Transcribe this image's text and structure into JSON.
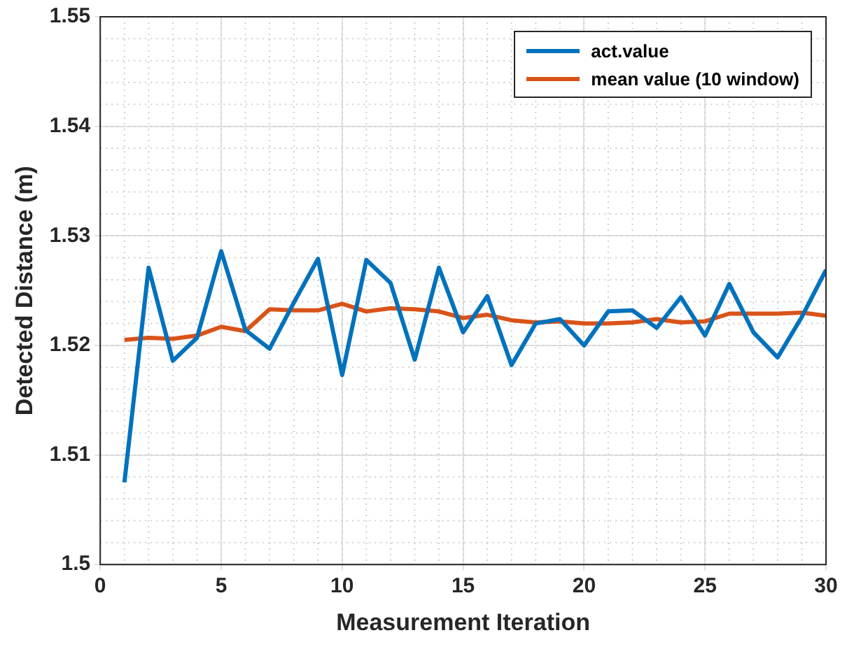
{
  "chart_data": {
    "type": "line",
    "xlabel": "Measurement Iteration",
    "ylabel": "Detected Distance (m)",
    "x": [
      1,
      2,
      3,
      4,
      5,
      6,
      7,
      8,
      9,
      10,
      11,
      12,
      13,
      14,
      15,
      16,
      17,
      18,
      19,
      20,
      21,
      22,
      23,
      24,
      25,
      26,
      27,
      28,
      29,
      30
    ],
    "series": [
      {
        "name": "act.value",
        "color": "#0072bd",
        "values": [
          1.5075,
          1.5271,
          1.5186,
          1.5207,
          1.5286,
          1.5214,
          1.5197,
          1.5239,
          1.5279,
          1.5173,
          1.5278,
          1.5257,
          1.5187,
          1.5271,
          1.5212,
          1.5245,
          1.5182,
          1.522,
          1.5224,
          1.52,
          1.5231,
          1.5232,
          1.5216,
          1.5244,
          1.5209,
          1.5256,
          1.5212,
          1.5189,
          1.5226,
          1.5269
        ]
      },
      {
        "name": "mean value (10 window)",
        "color": "#d95319",
        "values": [
          1.5205,
          1.5207,
          1.5206,
          1.5209,
          1.5217,
          1.5213,
          1.5233,
          1.5232,
          1.5232,
          1.5238,
          1.5231,
          1.5234,
          1.5233,
          1.5231,
          1.5225,
          1.5228,
          1.5223,
          1.5221,
          1.5222,
          1.522,
          1.522,
          1.5221,
          1.5224,
          1.5221,
          1.5222,
          1.5229,
          1.5229,
          1.5229,
          1.523,
          1.5227
        ]
      }
    ],
    "xlim": [
      0,
      30
    ],
    "xticks": [
      0,
      5,
      10,
      15,
      20,
      25,
      30
    ],
    "ylim": [
      1.5,
      1.55
    ],
    "yticks": [
      1.5,
      1.51,
      1.52,
      1.53,
      1.54,
      1.55
    ],
    "grid": true,
    "legend": "top right",
    "marker": "none",
    "line_style": "solid"
  }
}
